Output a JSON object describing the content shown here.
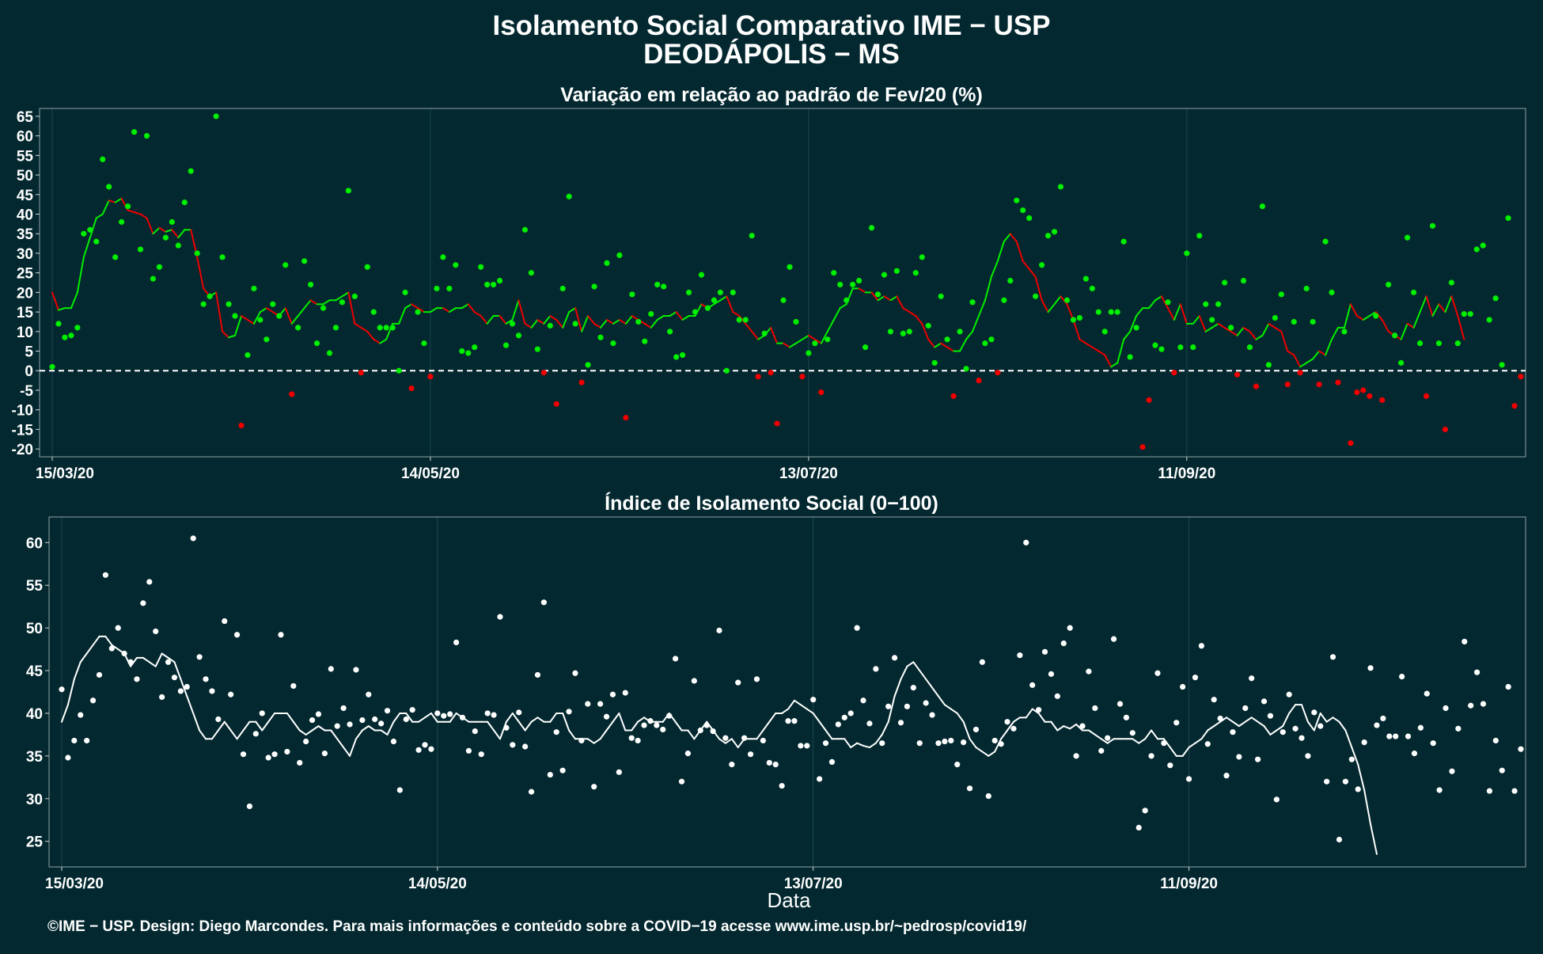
{
  "title_line1": "Isolamento Social Comparativo IME − USP",
  "title_line2": "DEODÁPOLIS − MS",
  "xlabel": "Data",
  "credit": "©IME − USP. Design: Diego Marcondes. Para mais informações e conteúdo sobre a COVID−19 acesse www.ime.usp.br/~pedrosp/covid19/",
  "colors": {
    "background": "#03282f",
    "positive": "#00ee00",
    "negative": "#ee0000",
    "index": "#ffffff",
    "zero_line": "#ffffff"
  },
  "chart_data": [
    {
      "type": "scatter",
      "title": "Variação em relação ao padrão de Fev/20 (%)",
      "x_start": "15/03/20",
      "x_tick_labels": [
        "15/03/20",
        "14/05/20",
        "13/07/20",
        "11/09/20"
      ],
      "x_tick_day_index": [
        0,
        60,
        120,
        180
      ],
      "ylim": [
        -22,
        67
      ],
      "y_ticks": [
        -20,
        -15,
        -10,
        -5,
        0,
        5,
        10,
        15,
        20,
        25,
        30,
        35,
        40,
        45,
        50,
        55,
        60,
        65
      ],
      "reference_line": 0,
      "series": [
        {
          "values": [
            1,
            12,
            8.5,
            9,
            11,
            35,
            36,
            33,
            54,
            47,
            29,
            38,
            42,
            61,
            31,
            60,
            23.5,
            26.5,
            34,
            38,
            32,
            43,
            51,
            30,
            17,
            19,
            65,
            29,
            17,
            14,
            -14,
            4,
            21,
            13,
            8,
            17,
            14,
            27,
            -6,
            11,
            28,
            22,
            7,
            16,
            4.5,
            11,
            17.5,
            46,
            19,
            -0.5,
            26.5,
            15,
            11,
            11,
            11,
            0,
            20,
            -4.5,
            15,
            7,
            -1.5,
            21,
            29,
            21,
            27,
            5,
            4.5,
            6,
            26.5,
            22,
            22,
            23,
            6.5,
            12,
            9,
            36,
            25,
            5.5,
            -0.5,
            11.5,
            -8.5,
            21,
            44.5,
            12,
            -3,
            1.5,
            21.5,
            8.5,
            27.5,
            7,
            29.5,
            -12,
            19.5,
            12.5,
            7.5,
            14.5,
            22,
            21.5,
            10,
            3.5,
            4,
            20,
            15,
            24.5,
            16,
            18,
            20,
            0,
            20,
            13,
            13,
            34.5,
            -1.5,
            9.5,
            -0.5,
            -13.5,
            18,
            26.5,
            12.5,
            -1.5,
            4.5,
            7,
            -5.5,
            8,
            25,
            22,
            18,
            22,
            23,
            6,
            36.5,
            19.5,
            24.5,
            10,
            25.5,
            9.5,
            10,
            25,
            29,
            11.5,
            2,
            19,
            8,
            -6.5,
            10,
            0.5,
            17.5,
            -2.5,
            7,
            8,
            -0.5,
            18,
            23,
            43.5,
            41,
            39,
            19,
            27,
            34.5,
            35.5,
            47,
            18,
            13,
            13.5,
            23.5,
            21,
            15,
            10,
            15,
            15,
            33,
            3.5,
            11,
            -19.5,
            -7.5,
            6.5,
            5.5,
            17.5,
            -0.5,
            6,
            30,
            6,
            34.5,
            17,
            13,
            17,
            22.5,
            11,
            -1,
            23,
            6,
            -4,
            42,
            1.5,
            13.5,
            19.5,
            -3.5,
            12.5,
            -0.5,
            21,
            12.5,
            -3.5,
            33,
            20,
            -3,
            10,
            -18.5,
            -5.5,
            -5,
            -6.5,
            14,
            -7.5,
            22,
            9,
            2,
            34,
            20,
            7,
            -6.5,
            37,
            7,
            -15,
            22.5,
            7,
            14.5,
            14.5,
            31,
            32,
            13,
            18.5,
            1.5,
            39,
            -9,
            -1.5
          ]
        },
        {
          "values": [
            20,
            15.5,
            16,
            16,
            20,
            29,
            34,
            39,
            40,
            43.5,
            43,
            44,
            41,
            40.5,
            40,
            39,
            35,
            36.5,
            35.5,
            36,
            34,
            36,
            36,
            29,
            21,
            19,
            20,
            10,
            8.5,
            9,
            14,
            13,
            12,
            15,
            16,
            15,
            14,
            16,
            12,
            14,
            16,
            18,
            17,
            17,
            18,
            18,
            19,
            20,
            12,
            11,
            10,
            8,
            7,
            8,
            12,
            12,
            16,
            17,
            16,
            15,
            15,
            16,
            16,
            15,
            16,
            16,
            17,
            15,
            14,
            12,
            14,
            14,
            12,
            13,
            18,
            12,
            11,
            13,
            12,
            14,
            13,
            11,
            15,
            16,
            10,
            14,
            12,
            11,
            13,
            12,
            13,
            12,
            14,
            13,
            12,
            11,
            13,
            14,
            14,
            15,
            13,
            14,
            14,
            17,
            16,
            17,
            18,
            19,
            15,
            14,
            12,
            10,
            8,
            9,
            11,
            7,
            7,
            6,
            7,
            8,
            9,
            8,
            7,
            10,
            13,
            16,
            17,
            21,
            21,
            20,
            20,
            18,
            19,
            18,
            19,
            16,
            15,
            14,
            12,
            8,
            6,
            7,
            6,
            5,
            5,
            8,
            10,
            14,
            18,
            24,
            28,
            33,
            35,
            33,
            28,
            26,
            24,
            18,
            15,
            17,
            19,
            17,
            13,
            8,
            7,
            6,
            5,
            4,
            1,
            2,
            8,
            10,
            14,
            16,
            16,
            18,
            19,
            16,
            13,
            17,
            12,
            12,
            14,
            10,
            11,
            12,
            11,
            10,
            9,
            11,
            10,
            8,
            9,
            12,
            11,
            10,
            5,
            4,
            1,
            2,
            3,
            5,
            4,
            8,
            11,
            11,
            17,
            14,
            13,
            14,
            15,
            13,
            10,
            9,
            8,
            12,
            11,
            15,
            19,
            14,
            17,
            15,
            19,
            14,
            8
          ]
        }
      ]
    },
    {
      "type": "scatter",
      "title": "Índice de Isolamento Social (0−100)",
      "x_start": "15/03/20",
      "x_tick_labels": [
        "15/03/20",
        "14/05/20",
        "13/07/20",
        "11/09/20"
      ],
      "x_tick_day_index": [
        0,
        60,
        120,
        180
      ],
      "ylim": [
        22,
        63
      ],
      "y_ticks": [
        25,
        30,
        35,
        40,
        45,
        50,
        55,
        60
      ],
      "series": [
        {
          "values": [
            42.8,
            34.8,
            36.8,
            39.8,
            36.8,
            41.5,
            44.5,
            56.2,
            47.6,
            50,
            47,
            46,
            44,
            52.9,
            55.4,
            49.6,
            41.9,
            46,
            44.2,
            42.6,
            43.1,
            60.5,
            46.6,
            44,
            42.6,
            39.3,
            50.8,
            42.2,
            49.2,
            35.2,
            29.1,
            37.6,
            40,
            34.8,
            35.2,
            49.2,
            35.5,
            43.2,
            34.2,
            36.7,
            39.2,
            39.9,
            35.3,
            45.2,
            38.5,
            40.6,
            38.7,
            45.1,
            39.2,
            42.2,
            39.3,
            38.8,
            40.3,
            36.7,
            31,
            39.3,
            40.4,
            35.7,
            36.3,
            35.8,
            40,
            39.7,
            39.9,
            48.3,
            39.5,
            35.6,
            37.9,
            35.2,
            40,
            39.8,
            51.3,
            38.3,
            36.3,
            40.1,
            36.1,
            30.8,
            44.5,
            53,
            32.8,
            37.8,
            33.3,
            40.2,
            44.7,
            36.8,
            41.1,
            31.4,
            41.1,
            39.6,
            42.2,
            33.1,
            42.4,
            37.1,
            36.8,
            38.6,
            39.1,
            38.6,
            38.1,
            39.7,
            46.4,
            32,
            35.3,
            43.8,
            38,
            38.6,
            37.9,
            49.7,
            37.1,
            34,
            43.6,
            37.1,
            35.2,
            44,
            36.8,
            34.2,
            34,
            31.5,
            39.1,
            39.1,
            36.2,
            36.2,
            41.6,
            32.3,
            36.5,
            34.3,
            38.7,
            39.5,
            40,
            50,
            41.5,
            38.8,
            45.2,
            36.5,
            40.8,
            46.5,
            38.9,
            40.8,
            43,
            36.5,
            41.2,
            39.8,
            36.5,
            36.7,
            36.8,
            34,
            36.6,
            31.2,
            38.1,
            46,
            30.3,
            36.8,
            36.4,
            39,
            38.2,
            46.8,
            60,
            43.3,
            40.4,
            47.2,
            44.6,
            42,
            48.2,
            50,
            35,
            38.5,
            44.9,
            40.6,
            35.6,
            37.1,
            48.7,
            41.1,
            39.5,
            37.7,
            26.6,
            28.6,
            35,
            44.7,
            36.5,
            33.9,
            38.9,
            43.1,
            32.3,
            44.2,
            47.9,
            36.4,
            41.6,
            39.4,
            32.7,
            37.8,
            34.9,
            40.6,
            44.1,
            34.6,
            41.4,
            39.7,
            29.9,
            37.8,
            42.2,
            38.2,
            37.1,
            35,
            40.1,
            38.5,
            32,
            46.6,
            25.2,
            32,
            34.6,
            31.1,
            36.6,
            45.3,
            38.6,
            39.4,
            37.3,
            37.3,
            44.3,
            37.3,
            35.3,
            38.3,
            42.3,
            36.5,
            31,
            40.6,
            33.2,
            38.2,
            48.4,
            40.9,
            44.8,
            41.1,
            30.9,
            36.8,
            33.3,
            43.1,
            30.9,
            35.8
          ]
        },
        {
          "values": [
            39,
            41,
            44,
            46,
            47,
            48,
            49,
            49,
            48,
            47.5,
            47,
            45.5,
            46.5,
            46.5,
            46,
            45.5,
            47,
            46.5,
            46,
            44,
            42,
            40,
            38,
            37,
            37,
            38,
            39,
            38,
            37,
            38,
            39,
            39,
            38,
            39,
            40,
            40,
            40,
            39,
            38,
            37.5,
            38,
            38.5,
            38,
            38,
            37,
            36,
            35,
            37,
            38,
            38.5,
            38,
            38,
            37.5,
            39,
            40,
            40,
            39,
            39,
            39.5,
            40,
            39,
            39,
            39,
            40,
            39.5,
            39,
            39,
            39,
            39,
            38,
            37,
            39,
            40,
            39,
            38,
            39,
            39.5,
            39,
            39,
            40,
            40,
            38,
            37,
            37,
            37,
            36.5,
            37,
            38,
            39,
            40,
            38,
            38,
            39,
            39.5,
            39,
            39,
            39,
            40,
            39,
            38,
            38,
            37,
            38,
            39,
            38,
            37,
            36.5,
            37,
            36,
            37,
            37,
            37,
            38,
            39,
            40,
            40,
            40.5,
            41.5,
            41,
            40.5,
            40,
            39,
            38,
            37,
            37,
            37,
            36,
            36.5,
            36.2,
            36,
            36.5,
            37.5,
            39,
            42,
            44,
            45.5,
            46,
            45,
            44,
            43,
            42,
            41,
            40.5,
            40,
            39,
            37,
            36,
            35.5,
            35,
            35.5,
            37,
            38,
            39,
            39.5,
            39.5,
            40.5,
            40,
            39,
            39,
            38,
            38.5,
            38.2,
            38.7,
            38,
            38,
            37.5,
            37,
            36.5,
            37,
            37,
            37,
            37,
            36.5,
            37,
            38,
            37,
            37,
            36,
            35,
            35,
            36,
            36.5,
            37,
            38,
            38.5,
            39,
            39.5,
            39,
            38.5,
            39,
            39.5,
            39,
            38.5,
            37.5,
            38,
            38.5,
            40,
            41,
            41,
            39,
            38,
            40,
            39,
            39.5,
            39,
            38,
            36,
            34,
            31,
            27,
            23.5
          ]
        }
      ]
    }
  ]
}
